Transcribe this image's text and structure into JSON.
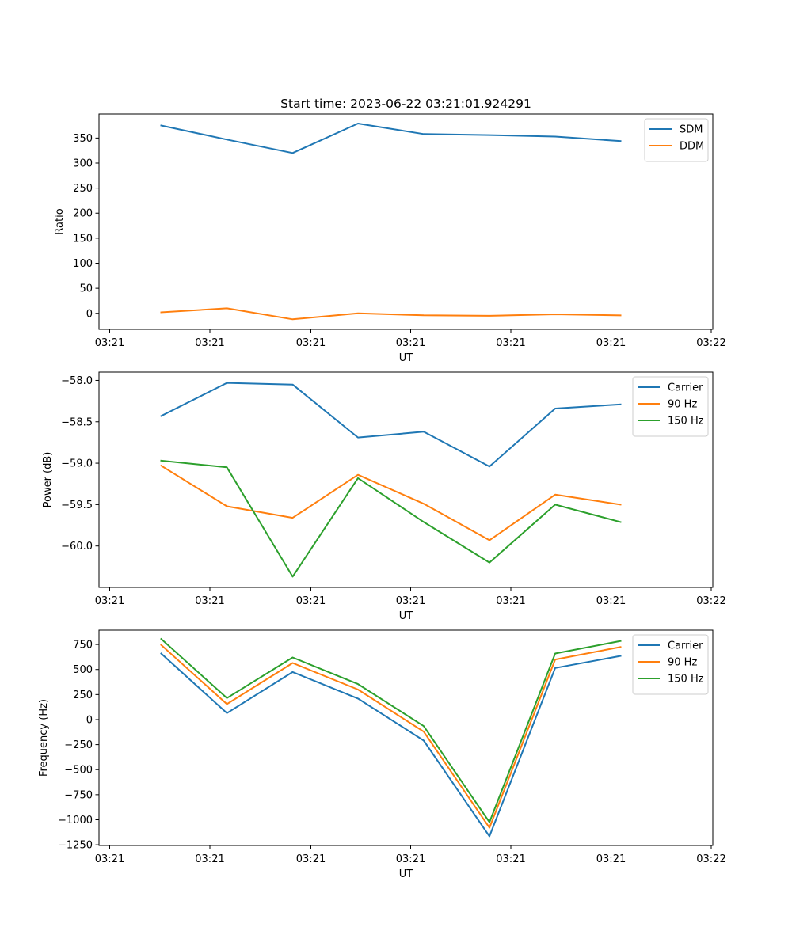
{
  "chart_data": [
    {
      "type": "line",
      "title": "Start time: 2023-06-22 03:21:01.924291",
      "xlabel": "UT",
      "ylabel": "Ratio",
      "x_tick_labels": [
        "03:21",
        "03:21",
        "03:21",
        "03:21",
        "03:21",
        "03:21",
        "03:22"
      ],
      "ylim": [
        -32,
        398
      ],
      "y_ticks": [
        0,
        50,
        100,
        150,
        200,
        250,
        300,
        350
      ],
      "y_tick_labels": [
        "0",
        "50",
        "100",
        "150",
        "200",
        "250",
        "300",
        "350"
      ],
      "legend_position": "top-right",
      "series": [
        {
          "name": "SDM",
          "color": "#1f77b4",
          "values": [
            375,
            347,
            320,
            379,
            358,
            356,
            353,
            344
          ]
        },
        {
          "name": "DDM",
          "color": "#ff7f0e",
          "values": [
            2,
            10,
            -12,
            0,
            -4,
            -5,
            -2,
            -4
          ]
        }
      ]
    },
    {
      "type": "line",
      "title": "",
      "xlabel": "UT",
      "ylabel": "Power (dB)",
      "x_tick_labels": [
        "03:21",
        "03:21",
        "03:21",
        "03:21",
        "03:21",
        "03:21",
        "03:22"
      ],
      "ylim": [
        -60.5,
        -57.9
      ],
      "y_ticks": [
        -60.0,
        -59.5,
        -59.0,
        -58.5,
        -58.0
      ],
      "y_tick_labels": [
        "−60.0",
        "−59.5",
        "−59.0",
        "−58.5",
        "−58.0"
      ],
      "legend_position": "top-right",
      "series": [
        {
          "name": "Carrier",
          "color": "#1f77b4",
          "values": [
            -58.43,
            -58.03,
            -58.05,
            -58.69,
            -58.62,
            -59.04,
            -58.34,
            -58.29
          ]
        },
        {
          "name": "90 Hz",
          "color": "#ff7f0e",
          "values": [
            -59.03,
            -59.52,
            -59.66,
            -59.14,
            -59.49,
            -59.93,
            -59.38,
            -59.5
          ]
        },
        {
          "name": "150 Hz",
          "color": "#2ca02c",
          "values": [
            -58.97,
            -59.05,
            -60.37,
            -59.18,
            -59.71,
            -60.2,
            -59.5,
            -59.71
          ]
        }
      ]
    },
    {
      "type": "line",
      "title": "",
      "xlabel": "UT",
      "ylabel": "Frequency (Hz)",
      "x_tick_labels": [
        "03:21",
        "03:21",
        "03:21",
        "03:21",
        "03:21",
        "03:21",
        "03:22"
      ],
      "ylim": [
        -1257,
        893
      ],
      "y_ticks": [
        -1250,
        -1000,
        -750,
        -500,
        -250,
        0,
        250,
        500,
        750
      ],
      "y_tick_labels": [
        "−1250",
        "−1000",
        "−750",
        "−500",
        "−250",
        "0",
        "250",
        "500",
        "750"
      ],
      "legend_position": "top-right",
      "series": [
        {
          "name": "Carrier",
          "color": "#1f77b4",
          "values": [
            660,
            65,
            475,
            210,
            -210,
            -1165,
            515,
            635
          ]
        },
        {
          "name": "90 Hz",
          "color": "#ff7f0e",
          "values": [
            745,
            155,
            565,
            300,
            -120,
            -1080,
            600,
            725
          ]
        },
        {
          "name": "150 Hz",
          "color": "#2ca02c",
          "values": [
            805,
            215,
            620,
            355,
            -65,
            -1025,
            660,
            785
          ]
        }
      ]
    }
  ]
}
